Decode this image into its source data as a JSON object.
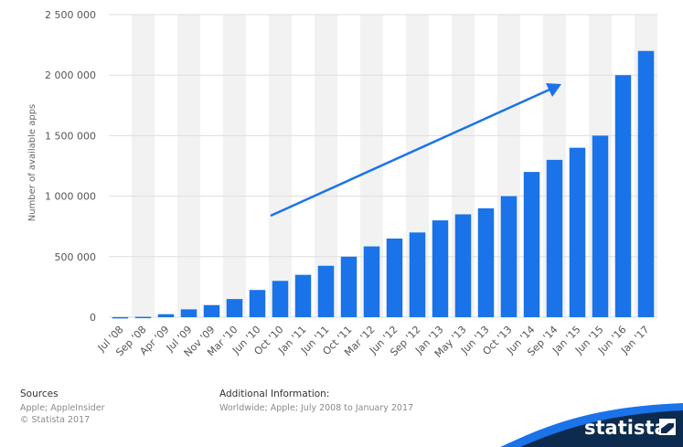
{
  "chart_data": {
    "type": "bar",
    "ylabel": "Number of available apps",
    "categories": [
      "Jul '08",
      "Sep '08",
      "Apr '09",
      "Jul '09",
      "Nov '09",
      "Mar '10",
      "Jun '10",
      "Oct '10",
      "Jan '11",
      "Jun '11",
      "Oct '11",
      "Mar '12",
      "Jun '12",
      "Sep '12",
      "Jan '13",
      "May '13",
      "Jun '13",
      "Oct '13",
      "Jun '14",
      "Sep '14",
      "Jan '15",
      "Jun '15",
      "Jun '16",
      "Jan '17"
    ],
    "values": [
      800,
      3000,
      25000,
      65000,
      100000,
      150000,
      225000,
      300000,
      350000,
      425000,
      500000,
      585000,
      650000,
      700000,
      800000,
      850000,
      900000,
      1000000,
      1200000,
      1300000,
      1400000,
      1500000,
      2000000,
      2200000
    ],
    "ylim": [
      0,
      2500000
    ],
    "yticks": [
      0,
      500000,
      1000000,
      1500000,
      2000000,
      2500000
    ],
    "ytick_labels": [
      "0",
      "500 000",
      "1 000 000",
      "1 500 000",
      "2 000 000",
      "2 500 000"
    ],
    "grid": true,
    "bar_color": "#1a73e8",
    "trend_arrow": true
  },
  "footer": {
    "sources_heading": "Sources",
    "sources_lines": [
      "Apple; AppleInsider",
      "© Statista 2017"
    ],
    "info_heading": "Additional Information:",
    "info_line": "Worldwide; Apple; July 2008 to January 2017"
  },
  "brand": {
    "name": "statista",
    "color": "#0d2b4e"
  }
}
